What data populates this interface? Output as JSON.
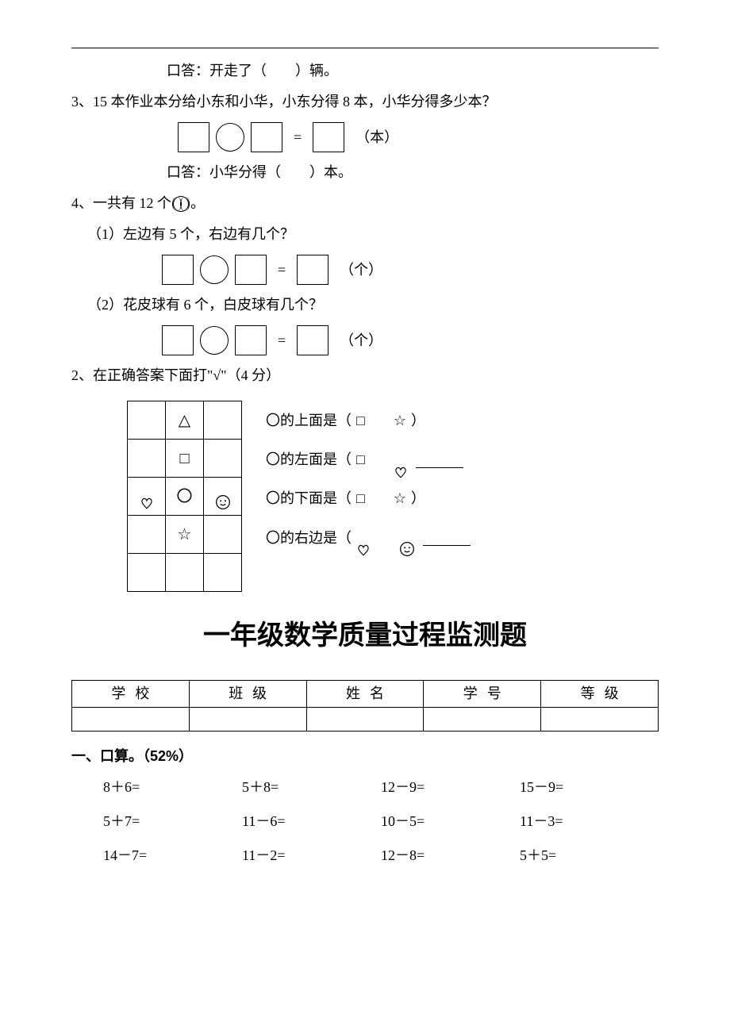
{
  "top_answer_line": "口答：开走了（　　）辆。",
  "q3": {
    "text": "3、15 本作业本分给小东和小华，小东分得 8 本，小华分得多少本？",
    "unit": "（本）",
    "answer_line": "口答：小华分得（　　）本。"
  },
  "q4": {
    "header": "4、一共有 12 个",
    "header_suffix": "。",
    "sub1": "（1）左边有 5 个，右边有几个？",
    "sub2": "（2）花皮球有 6 个，白皮球有几个？",
    "unit": "（个）"
  },
  "q2_check": {
    "header": "2、在正确答案下面打\"√\"（4 分）",
    "questions": [
      {
        "prefix": "〇的上面是（",
        "opt1": "□",
        "opt2": "☆",
        "suffix": "）"
      },
      {
        "prefix": "〇的左面是（",
        "opt1": "□",
        "opt2": "heart",
        "suffix": ""
      },
      {
        "prefix": "〇的下面是（",
        "opt1": "□",
        "opt2": "☆",
        "suffix": "）"
      },
      {
        "prefix": "〇的右边是（",
        "opt1": "heart",
        "opt2": "smiley",
        "suffix": ""
      }
    ],
    "grid": [
      [
        "",
        "△",
        ""
      ],
      [
        "",
        "□",
        ""
      ],
      [
        "heart",
        "〇",
        "smiley"
      ],
      [
        "",
        "☆",
        ""
      ],
      [
        "",
        "",
        ""
      ]
    ]
  },
  "title": "一年级数学质量过程监测题",
  "info_headers": [
    "学校",
    "班级",
    "姓名",
    "学号",
    "等级"
  ],
  "section1_heading": "一、口算。（52%）",
  "calculations": [
    "8＋6=",
    "5＋8=",
    "12－9=",
    "15－9=",
    "5＋7=",
    "11－6=",
    "10－5=",
    "11－3=",
    "14－7=",
    "11－2=",
    "12－8=",
    "5＋5="
  ]
}
